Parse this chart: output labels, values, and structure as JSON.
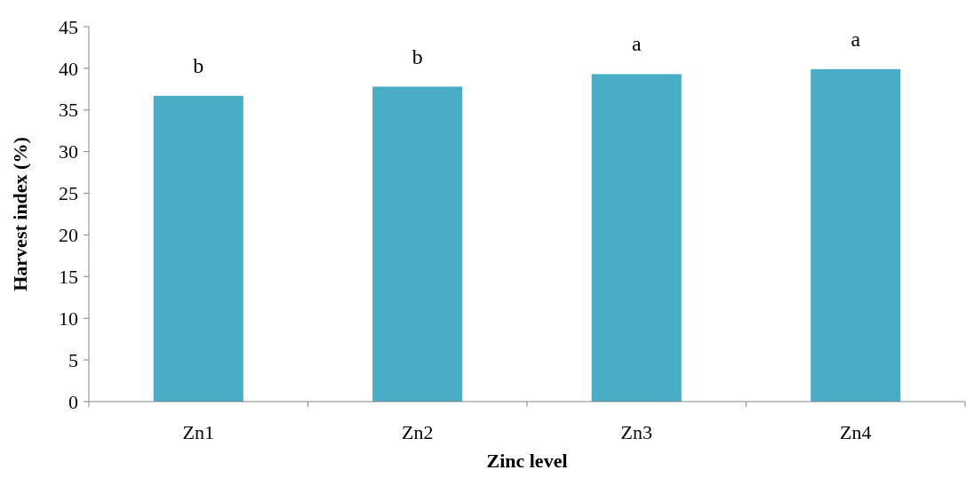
{
  "chart_data": {
    "type": "bar",
    "xlabel": "Zinc level",
    "ylabel": "Harvest index (%)",
    "categories": [
      "Zn1",
      "Zn2",
      "Zn3",
      "Zn4"
    ],
    "values": [
      36.7,
      37.8,
      39.3,
      39.9
    ],
    "color": "#4bacc6",
    "ylim": [
      0,
      45
    ],
    "yticks": [
      0,
      5,
      10,
      15,
      20,
      25,
      30,
      35,
      40,
      45
    ],
    "grid": false,
    "annotations": [
      {
        "text": "b",
        "x": "Zn1",
        "y": 36.7
      },
      {
        "text": "b",
        "x": "Zn2",
        "y": 37.8
      },
      {
        "text": "a",
        "x": "Zn3",
        "y": 39.3
      },
      {
        "text": "a",
        "x": "Zn4",
        "y": 39.9
      }
    ]
  }
}
